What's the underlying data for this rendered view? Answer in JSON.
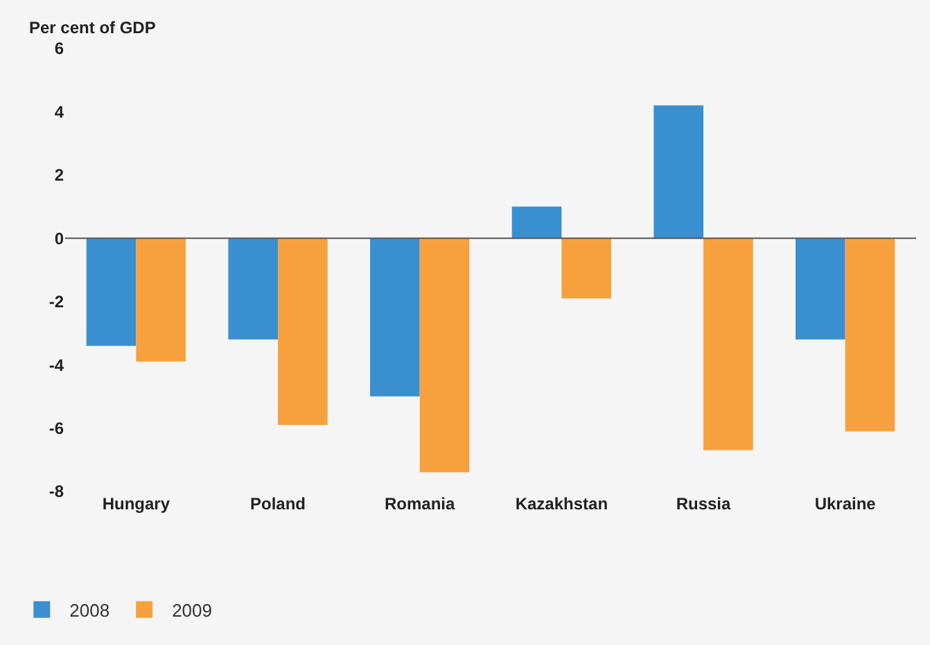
{
  "chart_data": {
    "type": "bar",
    "ylabel": "Per cent of GDP",
    "categories": [
      "Hungary",
      "Poland",
      "Romania",
      "Kazakhstan",
      "Russia",
      "Ukraine"
    ],
    "series": [
      {
        "name": "2008",
        "color": "#3a8fd1",
        "values": [
          -3.4,
          -3.2,
          -5.0,
          1.0,
          4.2,
          -3.2
        ]
      },
      {
        "name": "2009",
        "color": "#f7a13e",
        "values": [
          -3.9,
          -5.9,
          -7.4,
          -1.9,
          -6.7,
          -6.1
        ]
      }
    ],
    "ylim": [
      -8,
      6
    ],
    "yticks": [
      -8,
      -6,
      -4,
      -2,
      0,
      2,
      4,
      6
    ],
    "ref_lines": [
      {
        "axis": "y",
        "value": 0,
        "color": "#555555"
      }
    ],
    "legend": "bottom left"
  }
}
